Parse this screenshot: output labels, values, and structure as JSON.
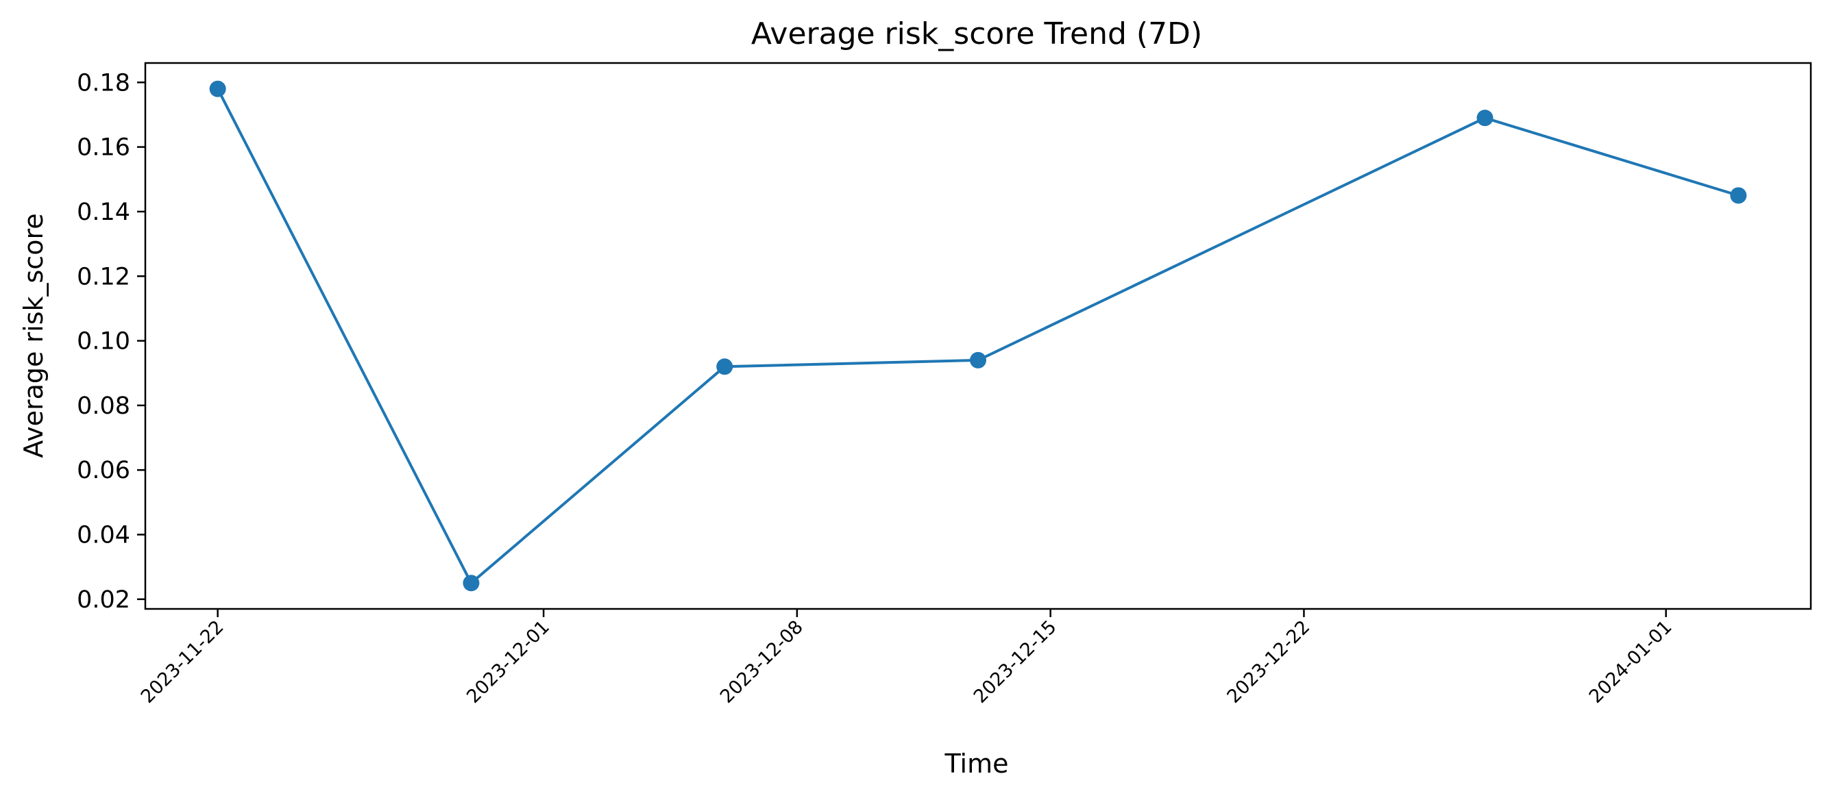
{
  "chart_data": {
    "type": "line",
    "title": "Average risk_score Trend (7D)",
    "xlabel": "Time",
    "ylabel": "Average risk_score",
    "x_ticks": [
      "2023-11-22",
      "2023-12-01",
      "2023-12-08",
      "2023-12-15",
      "2023-12-22",
      "2024-01-01"
    ],
    "y_ticks": [
      "0.02",
      "0.04",
      "0.06",
      "0.08",
      "0.10",
      "0.12",
      "0.14",
      "0.16",
      "0.18"
    ],
    "xlim": [
      "2023-11-20",
      "2024-01-05"
    ],
    "ylim": [
      0.017,
      0.186
    ],
    "grid": false,
    "series": [
      {
        "color": "#1f77b4",
        "marker": "circle",
        "points": [
          {
            "x": "2023-11-22",
            "y": 0.178
          },
          {
            "x": "2023-11-29",
            "y": 0.025
          },
          {
            "x": "2023-12-06",
            "y": 0.092
          },
          {
            "x": "2023-12-13",
            "y": 0.094
          },
          {
            "x": "2023-12-27",
            "y": 0.169
          },
          {
            "x": "2024-01-03",
            "y": 0.145
          }
        ]
      }
    ]
  }
}
